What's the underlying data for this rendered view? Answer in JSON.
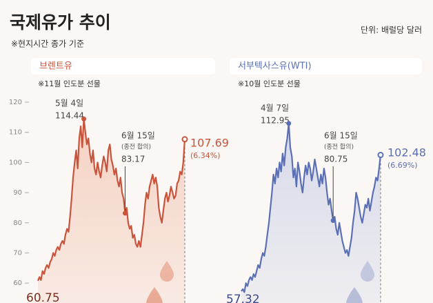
{
  "title": "국제유가 추이",
  "subtitle": "※현지시간 종가 기준",
  "unit": "단위: 배럴당 달러",
  "chart_data": [
    {
      "type": "line",
      "title": "브렌트유",
      "note": "※11월 인도분 선물",
      "color": "#c9533b",
      "fill": "#f4cdbd",
      "ylim": [
        55,
        120
      ],
      "yticks": [
        60,
        70,
        80,
        90,
        100,
        110,
        120
      ],
      "values": [
        60.75,
        62,
        61,
        64,
        63,
        65,
        66,
        65,
        67,
        68,
        70,
        69,
        71,
        72,
        71,
        73,
        74,
        73,
        76,
        78,
        77,
        82,
        88,
        95,
        100,
        104,
        98,
        108,
        112,
        105,
        114.44,
        110,
        106,
        108,
        103,
        100,
        104,
        98,
        96,
        100,
        97,
        95,
        99,
        102,
        100,
        97,
        104,
        106,
        101,
        99,
        96,
        98,
        94,
        92,
        95,
        90,
        88,
        83.17,
        85,
        80,
        78,
        79,
        75,
        76,
        73,
        72,
        74,
        72,
        76,
        80,
        86,
        90,
        88,
        92,
        94,
        96,
        93,
        95,
        92,
        85,
        82,
        80,
        84,
        88,
        90,
        87,
        89,
        92,
        90,
        88,
        89,
        93,
        94,
        97,
        96,
        100,
        107.69
      ],
      "annotations": [
        {
          "value": 60.75
        },
        {
          "date": "5월 4일",
          "value": 114.44
        },
        {
          "date": "6월 15일",
          "note": "(종전 합의)",
          "value": 83.17
        },
        {
          "value": 107.69,
          "change": "(6.34%)"
        }
      ]
    },
    {
      "type": "line",
      "title": "서부텍사스유(WTI)",
      "note": "※10월 인도분 선물",
      "color": "#5b6fb5",
      "fill": "#d3d6e8",
      "ylim": [
        55,
        120
      ],
      "values": [
        57.32,
        58,
        57,
        60,
        59,
        61,
        62,
        61,
        63,
        62,
        64,
        66,
        65,
        68,
        70,
        69,
        72,
        76,
        80,
        85,
        90,
        96,
        93,
        98,
        95,
        100,
        97,
        103,
        99,
        105,
        108,
        112.95,
        105,
        102,
        95,
        98,
        92,
        100,
        97,
        93,
        90,
        95,
        99,
        96,
        100,
        98,
        94,
        97,
        101,
        98,
        95,
        92,
        96,
        93,
        98,
        95,
        90,
        86,
        88,
        84,
        80.75,
        82,
        78,
        76,
        80,
        77,
        74,
        72,
        70,
        71,
        69,
        72,
        75,
        80,
        84,
        90,
        88,
        85,
        82,
        80,
        83,
        86,
        85,
        88,
        84,
        87,
        90,
        92,
        95,
        94,
        98,
        102.48
      ],
      "annotations": [
        {
          "value": 57.32
        },
        {
          "date": "4월 7일",
          "value": 112.95
        },
        {
          "date": "6월 15일",
          "note": "(종전 합의)",
          "value": 80.75
        },
        {
          "value": 102.48,
          "change": "(6.69%)"
        }
      ]
    }
  ]
}
